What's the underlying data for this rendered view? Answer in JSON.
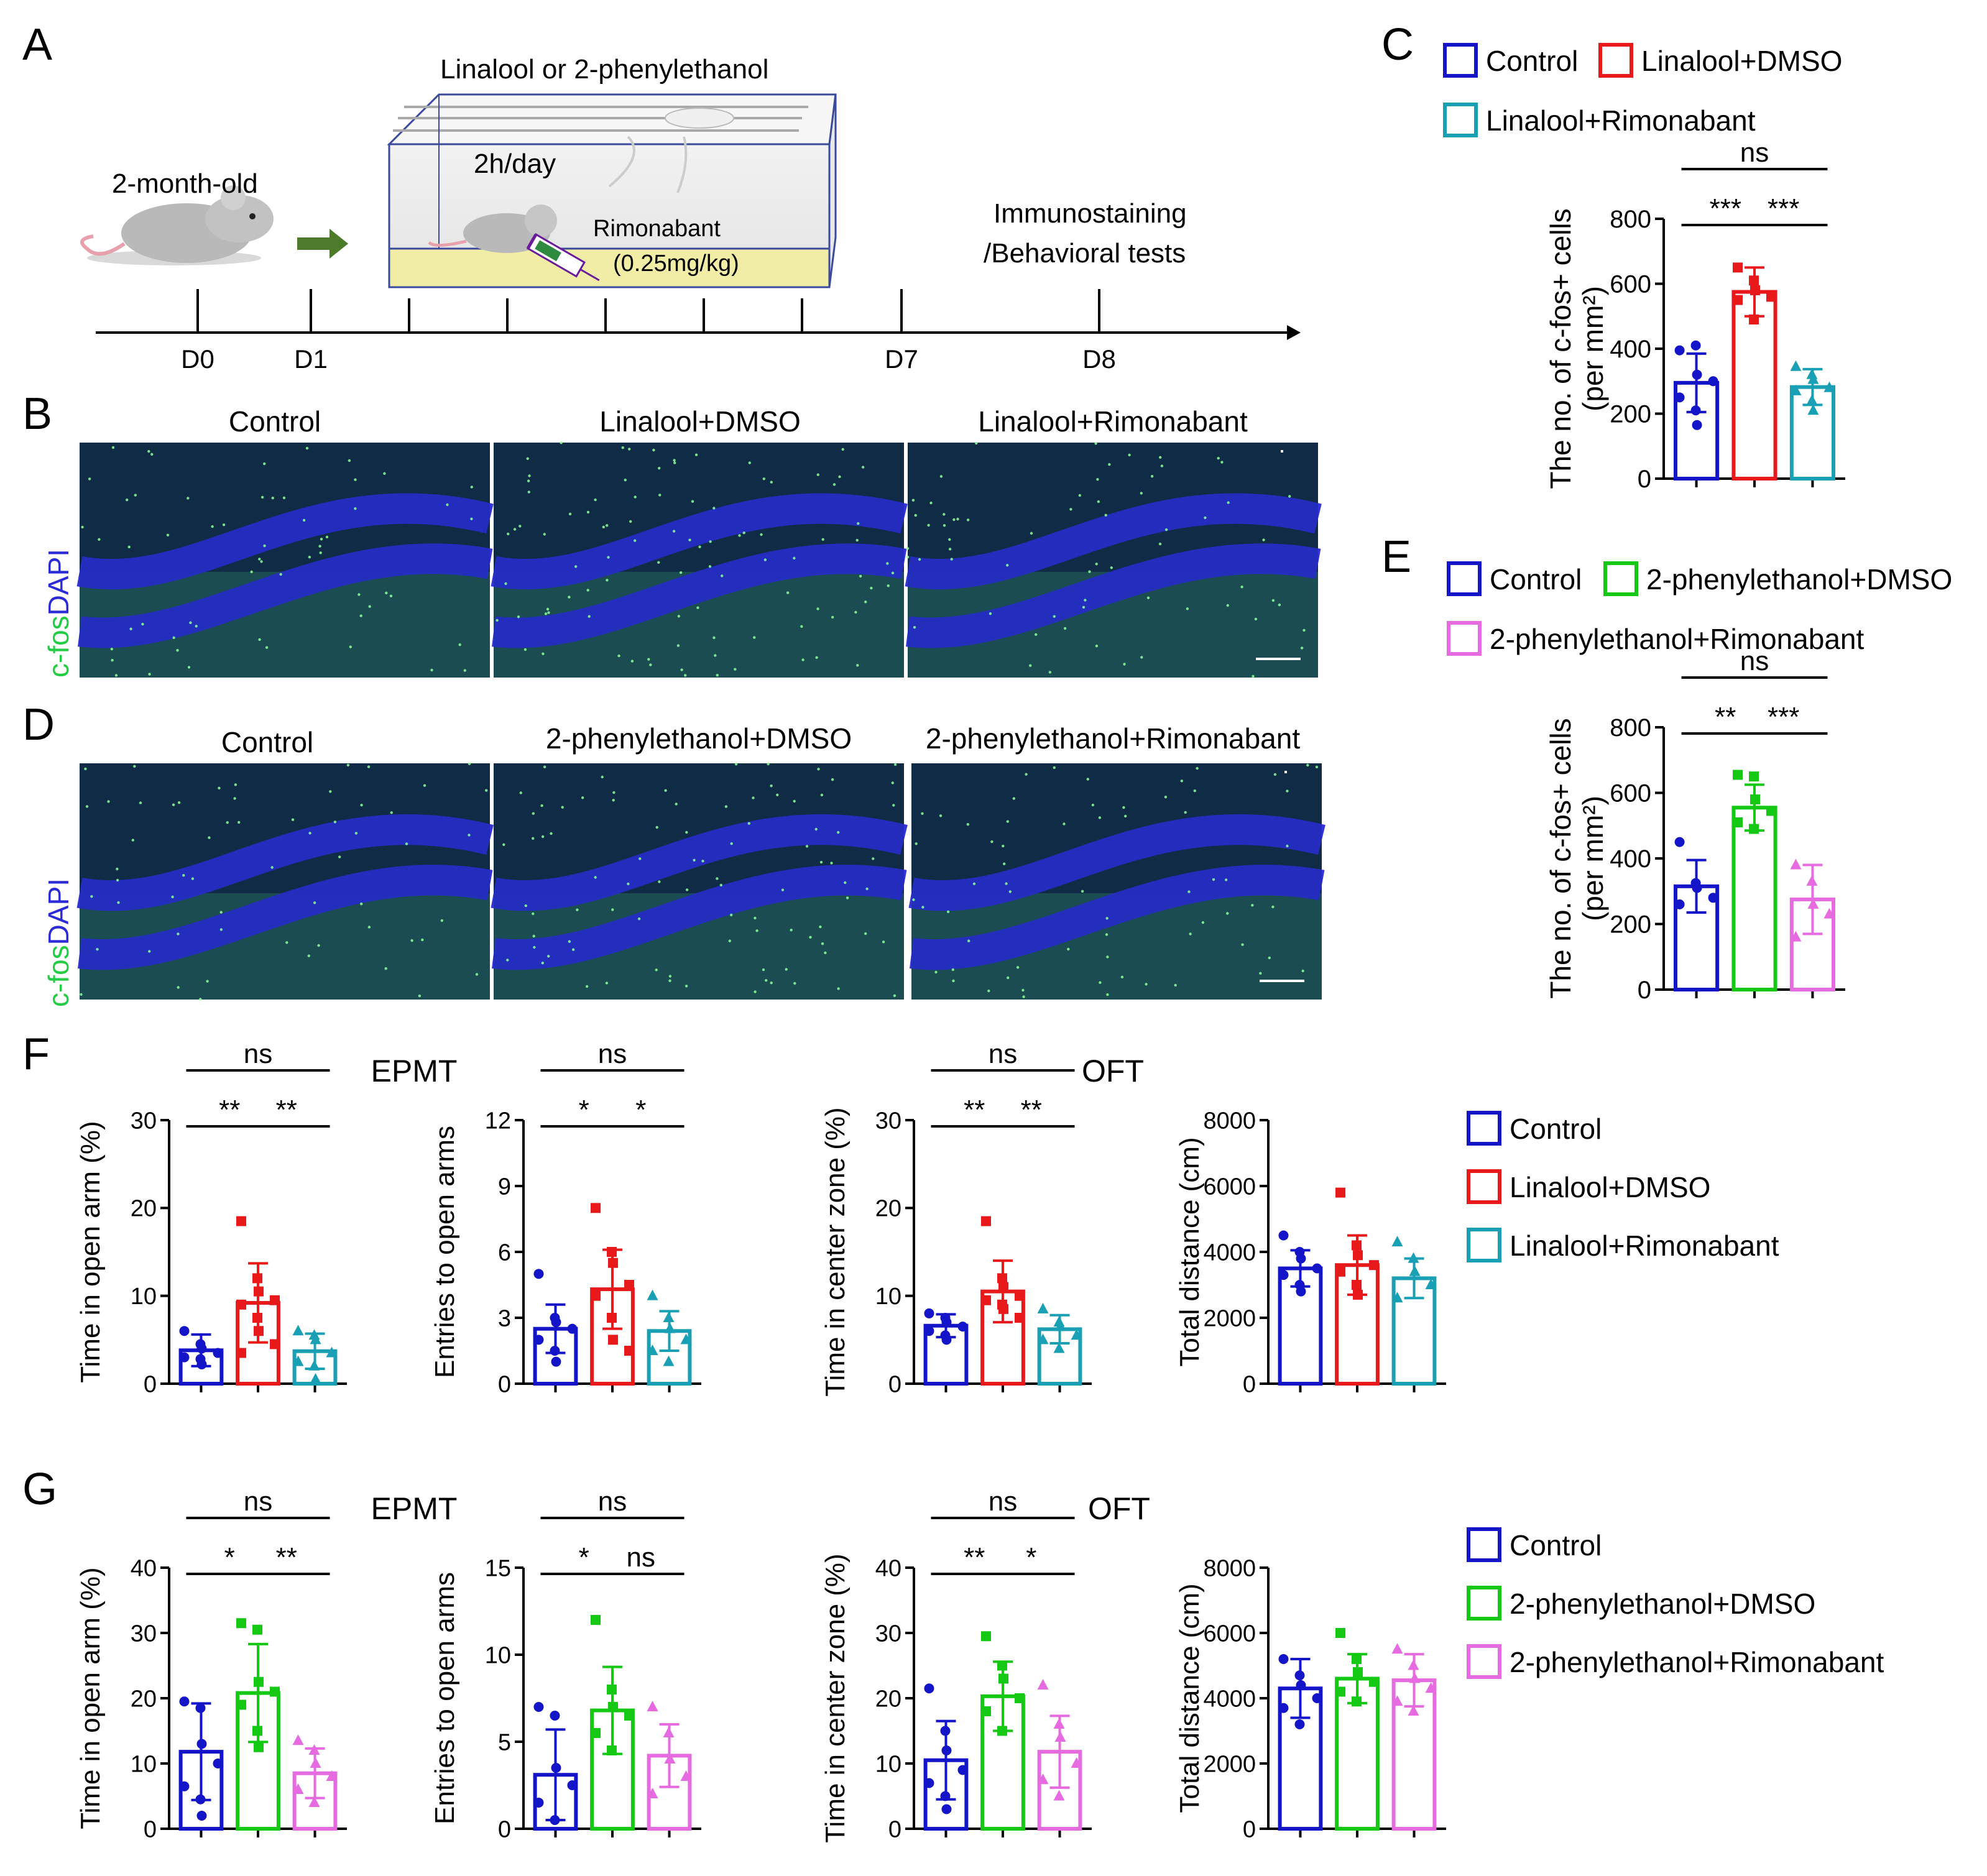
{
  "colors": {
    "control": "#1414c8",
    "linalool": "#e8191b",
    "rimonabant_l": "#1aa0b4",
    "pe": "#14c814",
    "rimonabant_p": "#e66be0",
    "cfos": "#22cc44",
    "dapi": "#2b2bd6"
  },
  "panel_labels": {
    "A": "A",
    "B": "B",
    "C": "C",
    "D": "D",
    "E": "E",
    "F": "F",
    "G": "G"
  },
  "schematic": {
    "mouse_age": "2-month-old",
    "chamber_title": "Linalool or 2-phenylethanol",
    "exposure": "2h/day",
    "drug": "Rimonabant",
    "dose": "(0.25mg/kg)",
    "endpoint_line1": "Immunostaining",
    "endpoint_line2": "/Behavioral tests",
    "days": [
      "D0",
      "D1",
      "D7",
      "D8"
    ]
  },
  "micrographs": {
    "stain_green": "c-fos",
    "stain_blue": "DAPI",
    "B_titles": [
      "Control",
      "Linalool+DMSO",
      "Linalool+Rimonabant"
    ],
    "D_titles": [
      "Control",
      "2-phenylethanol+DMSO",
      "2-phenylethanol+Rimonabant"
    ]
  },
  "legends": {
    "C": [
      "Control",
      "Linalool+DMSO",
      "Linalool+Rimonabant"
    ],
    "E": [
      "Control",
      "2-phenylethanol+DMSO",
      "2-phenylethanol+Rimonabant"
    ],
    "F": [
      "Control",
      "Linalool+DMSO",
      "Linalool+Rimonabant"
    ],
    "G": [
      "Control",
      "2-phenylethanol+DMSO",
      "2-phenylethanol+Rimonabant"
    ]
  },
  "test_titles": {
    "F_left": "EPMT",
    "F_right": "OFT",
    "G_left": "EPMT",
    "G_right": "OFT"
  },
  "chart_data": [
    {
      "id": "C",
      "type": "bar",
      "ylabel_line1": "The no. of c-fos+ cells",
      "ylabel_line2": "(per mm²)",
      "ylim": [
        0,
        800
      ],
      "ticks": [
        0,
        200,
        400,
        600,
        800
      ],
      "categories": [
        "Control",
        "Linalool+DMSO",
        "Linalool+Rimonabant"
      ],
      "values": [
        295,
        575,
        282
      ],
      "errors": [
        90,
        75,
        55
      ],
      "points": [
        [
          395,
          410,
          320,
          300,
          250,
          210,
          165
        ],
        [
          650,
          610,
          580,
          560,
          550,
          490
        ],
        [
          345,
          320,
          305,
          280,
          270,
          240,
          210
        ]
      ],
      "sig": [
        {
          "a": 0,
          "b": 1,
          "label": "***",
          "level": 1
        },
        {
          "a": 1,
          "b": 2,
          "label": "***",
          "level": 1
        },
        {
          "a": 0,
          "b": 2,
          "label": "ns",
          "level": 2
        }
      ]
    },
    {
      "id": "E",
      "type": "bar",
      "ylabel_line1": "The no. of c-fos+ cells",
      "ylabel_line2": "(per mm²)",
      "ylim": [
        0,
        800
      ],
      "ticks": [
        0,
        200,
        400,
        600,
        800
      ],
      "categories": [
        "Control",
        "2-phenylethanol+DMSO",
        "2-phenylethanol+Rimonabant"
      ],
      "values": [
        315,
        555,
        275
      ],
      "errors": [
        80,
        70,
        105
      ],
      "points": [
        [
          450,
          325,
          310,
          280,
          260
        ],
        [
          655,
          650,
          580,
          545,
          510,
          490
        ],
        [
          380,
          330,
          260,
          230,
          160
        ]
      ],
      "sig": [
        {
          "a": 0,
          "b": 1,
          "label": "**",
          "level": 1
        },
        {
          "a": 1,
          "b": 2,
          "label": "***",
          "level": 1
        },
        {
          "a": 0,
          "b": 2,
          "label": "ns",
          "level": 2
        }
      ]
    },
    {
      "id": "F1",
      "type": "bar",
      "ylabel": "Time in open arm (%)",
      "ylim": [
        0,
        30
      ],
      "ticks": [
        0,
        10,
        20,
        30
      ],
      "values": [
        3.8,
        9.2,
        3.7
      ],
      "errors": [
        1.8,
        4.5,
        2.0
      ],
      "points": [
        [
          6.0,
          4.5,
          4.0,
          3.5,
          3.0,
          2.8,
          2.2
        ],
        [
          18.5,
          12.0,
          10.5,
          9.5,
          9.0,
          7.5,
          6.0,
          4.5,
          3.5
        ],
        [
          6.0,
          5.5,
          5.0,
          3.5,
          2.5,
          2.0,
          0.5
        ]
      ],
      "sig": [
        {
          "a": 0,
          "b": 1,
          "label": "**",
          "level": 1
        },
        {
          "a": 1,
          "b": 2,
          "label": "**",
          "level": 1
        },
        {
          "a": 0,
          "b": 2,
          "label": "ns",
          "level": 2
        }
      ]
    },
    {
      "id": "F2",
      "type": "bar",
      "ylabel": "Entries to open arms",
      "ylim": [
        0,
        12
      ],
      "ticks": [
        0,
        3,
        6,
        9,
        12
      ],
      "values": [
        2.5,
        4.3,
        2.4
      ],
      "errors": [
        1.1,
        1.8,
        0.9
      ],
      "points": [
        [
          5.0,
          3.0,
          2.8,
          2.5,
          2.0,
          1.5,
          1.0
        ],
        [
          8.0,
          6.0,
          5.5,
          4.5,
          4.0,
          3.0,
          2.0,
          1.5
        ],
        [
          4.0,
          3.0,
          2.5,
          2.0,
          1.5,
          1.0
        ]
      ],
      "sig": [
        {
          "a": 0,
          "b": 1,
          "label": "*",
          "level": 1
        },
        {
          "a": 1,
          "b": 2,
          "label": "*",
          "level": 1
        },
        {
          "a": 0,
          "b": 2,
          "label": "ns",
          "level": 2
        }
      ]
    },
    {
      "id": "F3",
      "type": "bar",
      "ylabel": "Time in center zone (%)",
      "ylim": [
        0,
        30
      ],
      "ticks": [
        0,
        10,
        20,
        30
      ],
      "values": [
        6.6,
        10.5,
        6.2
      ],
      "errors": [
        1.3,
        3.5,
        1.6
      ],
      "points": [
        [
          8.0,
          7.5,
          7.0,
          6.5,
          6.0,
          5.5,
          5.0
        ],
        [
          18.5,
          12.0,
          11.0,
          10.0,
          9.5,
          9.0,
          8.5,
          7.5
        ],
        [
          8.5,
          7.0,
          6.5,
          5.5,
          5.0,
          4.0
        ]
      ],
      "sig": [
        {
          "a": 0,
          "b": 1,
          "label": "**",
          "level": 1
        },
        {
          "a": 1,
          "b": 2,
          "label": "**",
          "level": 1
        },
        {
          "a": 0,
          "b": 2,
          "label": "ns",
          "level": 2
        }
      ]
    },
    {
      "id": "F4",
      "type": "bar",
      "ylabel": "Total distance (cm)",
      "ylim": [
        0,
        8000
      ],
      "ticks": [
        0,
        2000,
        4000,
        6000,
        8000
      ],
      "values": [
        3500,
        3600,
        3200
      ],
      "errors": [
        550,
        900,
        600
      ],
      "points": [
        [
          4500,
          4000,
          3800,
          3500,
          3300,
          3000,
          2800
        ],
        [
          5800,
          4200,
          3900,
          3600,
          3400,
          3000,
          2700
        ],
        [
          4300,
          3800,
          3400,
          3000,
          2600
        ]
      ],
      "sig": []
    },
    {
      "id": "G1",
      "type": "bar",
      "ylabel": "Time in open arm (%)",
      "ylim": [
        0,
        40
      ],
      "ticks": [
        0,
        10,
        20,
        30,
        40
      ],
      "values": [
        11.8,
        20.8,
        8.5
      ],
      "errors": [
        7.4,
        7.5,
        3.8
      ],
      "points": [
        [
          19.5,
          18.5,
          13.0,
          10.0,
          6.5,
          4.5,
          2.0
        ],
        [
          31.5,
          30.5,
          22.5,
          21.0,
          19.0,
          15.0,
          12.5
        ],
        [
          13.5,
          12.0,
          10.0,
          8.0,
          6.0,
          4.0
        ]
      ],
      "sig": [
        {
          "a": 0,
          "b": 1,
          "label": "*",
          "level": 1
        },
        {
          "a": 1,
          "b": 2,
          "label": "**",
          "level": 1
        },
        {
          "a": 0,
          "b": 2,
          "label": "ns",
          "level": 2
        }
      ]
    },
    {
      "id": "G2",
      "type": "bar",
      "ylabel": "Entries to open arms",
      "ylim": [
        0,
        15
      ],
      "ticks": [
        0,
        5,
        10,
        15
      ],
      "values": [
        3.1,
        6.8,
        4.2
      ],
      "errors": [
        2.6,
        2.5,
        1.8
      ],
      "points": [
        [
          7.0,
          6.5,
          3.5,
          2.5,
          1.5,
          0.5
        ],
        [
          12.0,
          8.0,
          7.0,
          6.5,
          5.5,
          4.5
        ],
        [
          7.0,
          5.5,
          4.0,
          3.0,
          2.0
        ]
      ],
      "sig": [
        {
          "a": 0,
          "b": 1,
          "label": "*",
          "level": 1
        },
        {
          "a": 1,
          "b": 2,
          "label": "ns",
          "level": 1
        },
        {
          "a": 0,
          "b": 2,
          "label": "ns",
          "level": 2
        }
      ]
    },
    {
      "id": "G3",
      "type": "bar",
      "ylabel": "Time in center zone (%)",
      "ylim": [
        0,
        40
      ],
      "ticks": [
        0,
        10,
        20,
        30,
        40
      ],
      "values": [
        10.5,
        20.3,
        11.8
      ],
      "errors": [
        6.0,
        5.3,
        5.5
      ],
      "points": [
        [
          21.5,
          15.0,
          12.0,
          9.0,
          7.0,
          5.0,
          3.0
        ],
        [
          29.5,
          25.0,
          23.0,
          20.0,
          18.0,
          15.0
        ],
        [
          22.0,
          16.0,
          14.0,
          10.0,
          7.5,
          5.0
        ]
      ],
      "sig": [
        {
          "a": 0,
          "b": 1,
          "label": "**",
          "level": 1
        },
        {
          "a": 1,
          "b": 2,
          "label": "*",
          "level": 1
        },
        {
          "a": 0,
          "b": 2,
          "label": "ns",
          "level": 2
        }
      ]
    },
    {
      "id": "G4",
      "type": "bar",
      "ylabel": "Total distance (cm)",
      "ylim": [
        0,
        8000
      ],
      "ticks": [
        0,
        2000,
        4000,
        6000,
        8000
      ],
      "values": [
        4300,
        4600,
        4550
      ],
      "errors": [
        900,
        750,
        800
      ],
      "points": [
        [
          5200,
          4700,
          4400,
          4000,
          3700,
          3200
        ],
        [
          6000,
          5200,
          4800,
          4500,
          4200,
          3900
        ],
        [
          5500,
          5000,
          4600,
          4300,
          3900,
          3600
        ]
      ],
      "sig": []
    }
  ]
}
